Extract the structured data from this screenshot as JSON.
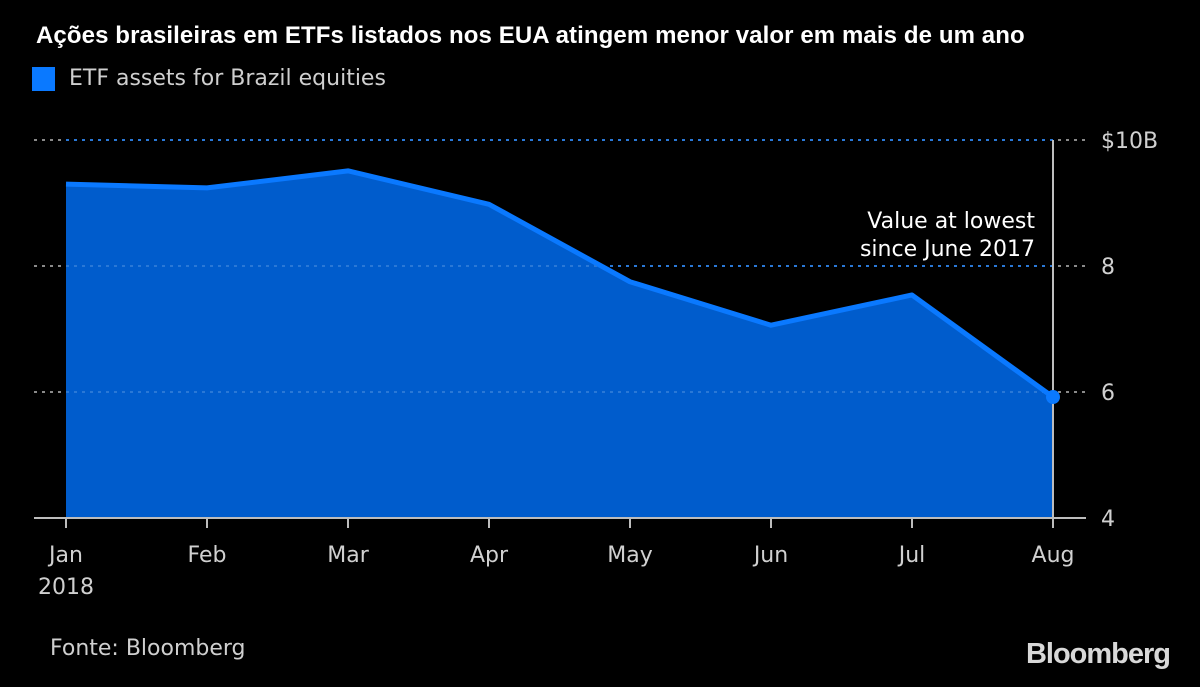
{
  "chart_data": {
    "type": "area",
    "title": "Ações brasileiras em ETFs listados nos EUA atingem menor valor em mais de um ano",
    "legend": [
      {
        "label": "ETF assets for Brazil equities",
        "color": "#0a79ff"
      }
    ],
    "legend_placement": "top-left",
    "categories": [
      "Jan",
      "Feb",
      "Mar",
      "Apr",
      "May",
      "Jun",
      "Jul",
      "Aug"
    ],
    "x_tick_sublabels": [
      "2018",
      "",
      "",
      "",
      "",
      "",
      "",
      ""
    ],
    "series": [
      {
        "name": "ETF assets for Brazil equities",
        "values": [
          9.3,
          9.24,
          9.51,
          8.98,
          7.75,
          7.06,
          7.54,
          5.92
        ]
      }
    ],
    "ylim": [
      4,
      10
    ],
    "yticks": [
      4,
      6,
      8,
      10
    ],
    "ytick_labels": [
      "4",
      "6",
      "8",
      "$10B"
    ],
    "y_axis_side": "right",
    "grid": "horizontal dotted",
    "xlabel": "",
    "ylabel": "",
    "annotation": {
      "lines": [
        "Value at lowest",
        "since June 2017"
      ],
      "target_category": "Aug"
    },
    "highlight_point": {
      "category": "Aug",
      "value": 5.92
    },
    "colors": {
      "line": "#0a79ff",
      "fill": "#005ccc",
      "grid": "#8a8a8a",
      "axis": "#bdbdbd"
    }
  },
  "footer": {
    "source": "Fonte: Bloomberg",
    "brand": "Bloomberg"
  }
}
